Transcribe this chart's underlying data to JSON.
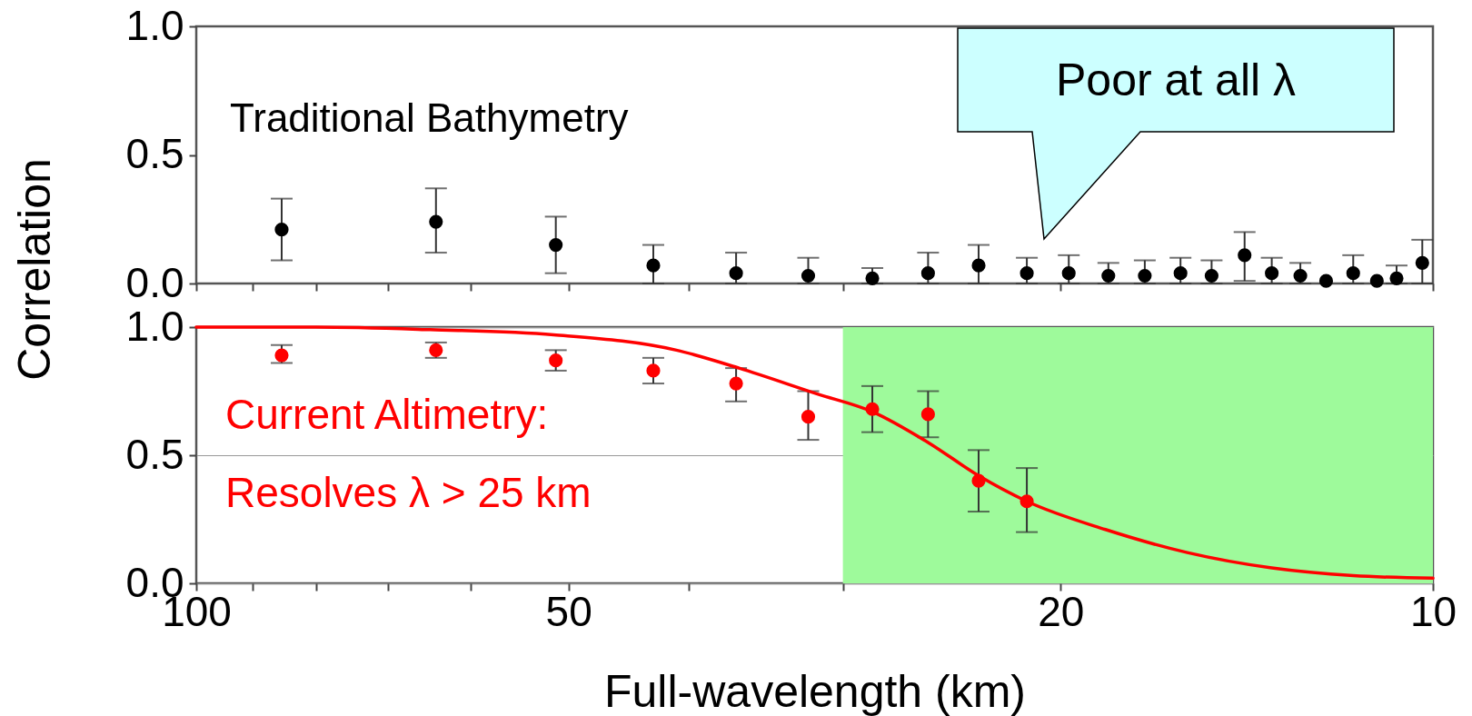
{
  "chart_data": [
    {
      "type": "scatter",
      "series": [
        {
          "color": "#000000",
          "x": [
            85.3,
            64,
            51.2,
            42.7,
            36.6,
            32,
            28.4,
            25.6,
            23.3,
            21.3,
            19.7,
            18.3,
            17.1,
            16,
            15.1,
            14.2,
            13.5,
            12.8,
            12.2,
            11.6,
            11.1,
            10.7,
            10.2
          ],
          "values": [
            0.21,
            0.24,
            0.15,
            0.07,
            0.04,
            0.03,
            0.02,
            0.04,
            0.07,
            0.04,
            0.04,
            0.03,
            0.03,
            0.04,
            0.03,
            0.11,
            0.04,
            0.03,
            0.01,
            0.04,
            0.01,
            0.02,
            0.08
          ],
          "errors": [
            [
              0.09,
              0.33
            ],
            [
              0.12,
              0.37
            ],
            [
              0.04,
              0.26
            ],
            [
              0,
              0.15
            ],
            [
              0,
              0.12
            ],
            [
              0,
              0.1
            ],
            [
              0,
              0.06
            ],
            [
              0,
              0.12
            ],
            [
              0,
              0.15
            ],
            [
              0,
              0.1
            ],
            [
              0,
              0.11
            ],
            [
              0,
              0.08
            ],
            [
              0,
              0.09
            ],
            [
              0,
              0.1
            ],
            [
              0,
              0.09
            ],
            [
              0.01,
              0.2
            ],
            [
              0,
              0.1
            ],
            [
              0,
              0.08
            ],
            null,
            [
              0,
              0.11
            ],
            null,
            [
              0,
              0.07
            ],
            [
              0,
              0.17
            ]
          ]
        }
      ],
      "xlim": [
        100,
        10
      ],
      "xticks": [
        100,
        {
          "value": 90,
          "label": null
        },
        {
          "value": 80,
          "label": null
        },
        {
          "value": 70,
          "label": null
        },
        {
          "value": 60,
          "label": null
        },
        50,
        {
          "value": 40,
          "label": null
        },
        {
          "value": 30,
          "label": null
        },
        20,
        10
      ],
      "log": "x",
      "ylim": [
        0,
        1
      ],
      "yticks": [
        {
          "value": 0,
          "label": "0.0"
        },
        {
          "value": 0.5,
          "label": "0.5"
        },
        {
          "value": 1,
          "label": "1.0"
        }
      ],
      "tick_labels": "y",
      "marker": "circle",
      "annotations": [
        "Traditional Bathymetry",
        "Poor at all λ"
      ]
    },
    {
      "type": "scatter",
      "series": [
        {
          "color": "#ff0000",
          "marker": "circle",
          "x": [
            85.3,
            64,
            51.2,
            42.7,
            36.6,
            32,
            28.4,
            25.6,
            23.3,
            21.3
          ],
          "values": [
            0.89,
            0.91,
            0.87,
            0.83,
            0.78,
            0.65,
            0.68,
            0.66,
            0.4,
            0.32
          ],
          "errors": [
            [
              0.86,
              0.93
            ],
            [
              0.88,
              0.94
            ],
            [
              0.83,
              0.91
            ],
            [
              0.78,
              0.88
            ],
            [
              0.71,
              0.84
            ],
            [
              0.56,
              0.75
            ],
            [
              0.59,
              0.77
            ],
            [
              0.57,
              0.75
            ],
            [
              0.28,
              0.52
            ],
            [
              0.2,
              0.45
            ]
          ]
        },
        {
          "type": "line",
          "color": "#ff0000",
          "x": [
            100,
            80,
            64.7,
            51.4,
            40.9,
            36.4,
            31.5,
            28.4,
            25.6,
            23.3,
            21.3,
            18.4,
            15.8,
            13.5,
            11.6,
            10
          ],
          "values": [
            1.0,
            1.0,
            0.99,
            0.97,
            0.91,
            0.84,
            0.74,
            0.67,
            0.55,
            0.42,
            0.32,
            0.21,
            0.12,
            0.06,
            0.03,
            0.02
          ]
        }
      ],
      "bands": [
        {
          "axis": "x",
          "from": 30,
          "to": 10,
          "color": "#9efa9b"
        }
      ],
      "xlabel": "Full-wavelength (km)",
      "ylabel": "Correlation",
      "xlim": [
        100,
        10
      ],
      "xticks": [
        100,
        {
          "value": 90,
          "label": null
        },
        {
          "value": 80,
          "label": null
        },
        {
          "value": 70,
          "label": null
        },
        {
          "value": 60,
          "label": null
        },
        50,
        {
          "value": 40,
          "label": null
        },
        {
          "value": 30,
          "label": null
        },
        20,
        10
      ],
      "log": "x",
      "ylim": [
        0,
        1
      ],
      "yticks": [
        {
          "value": 0,
          "label": "0.0"
        },
        {
          "value": 0.5,
          "label": "0.5"
        },
        {
          "value": 1,
          "label": "1.0"
        }
      ],
      "grid": "y",
      "annotations": [
        "Current Altimetry:",
        "Resolves λ > 25 km"
      ]
    }
  ]
}
